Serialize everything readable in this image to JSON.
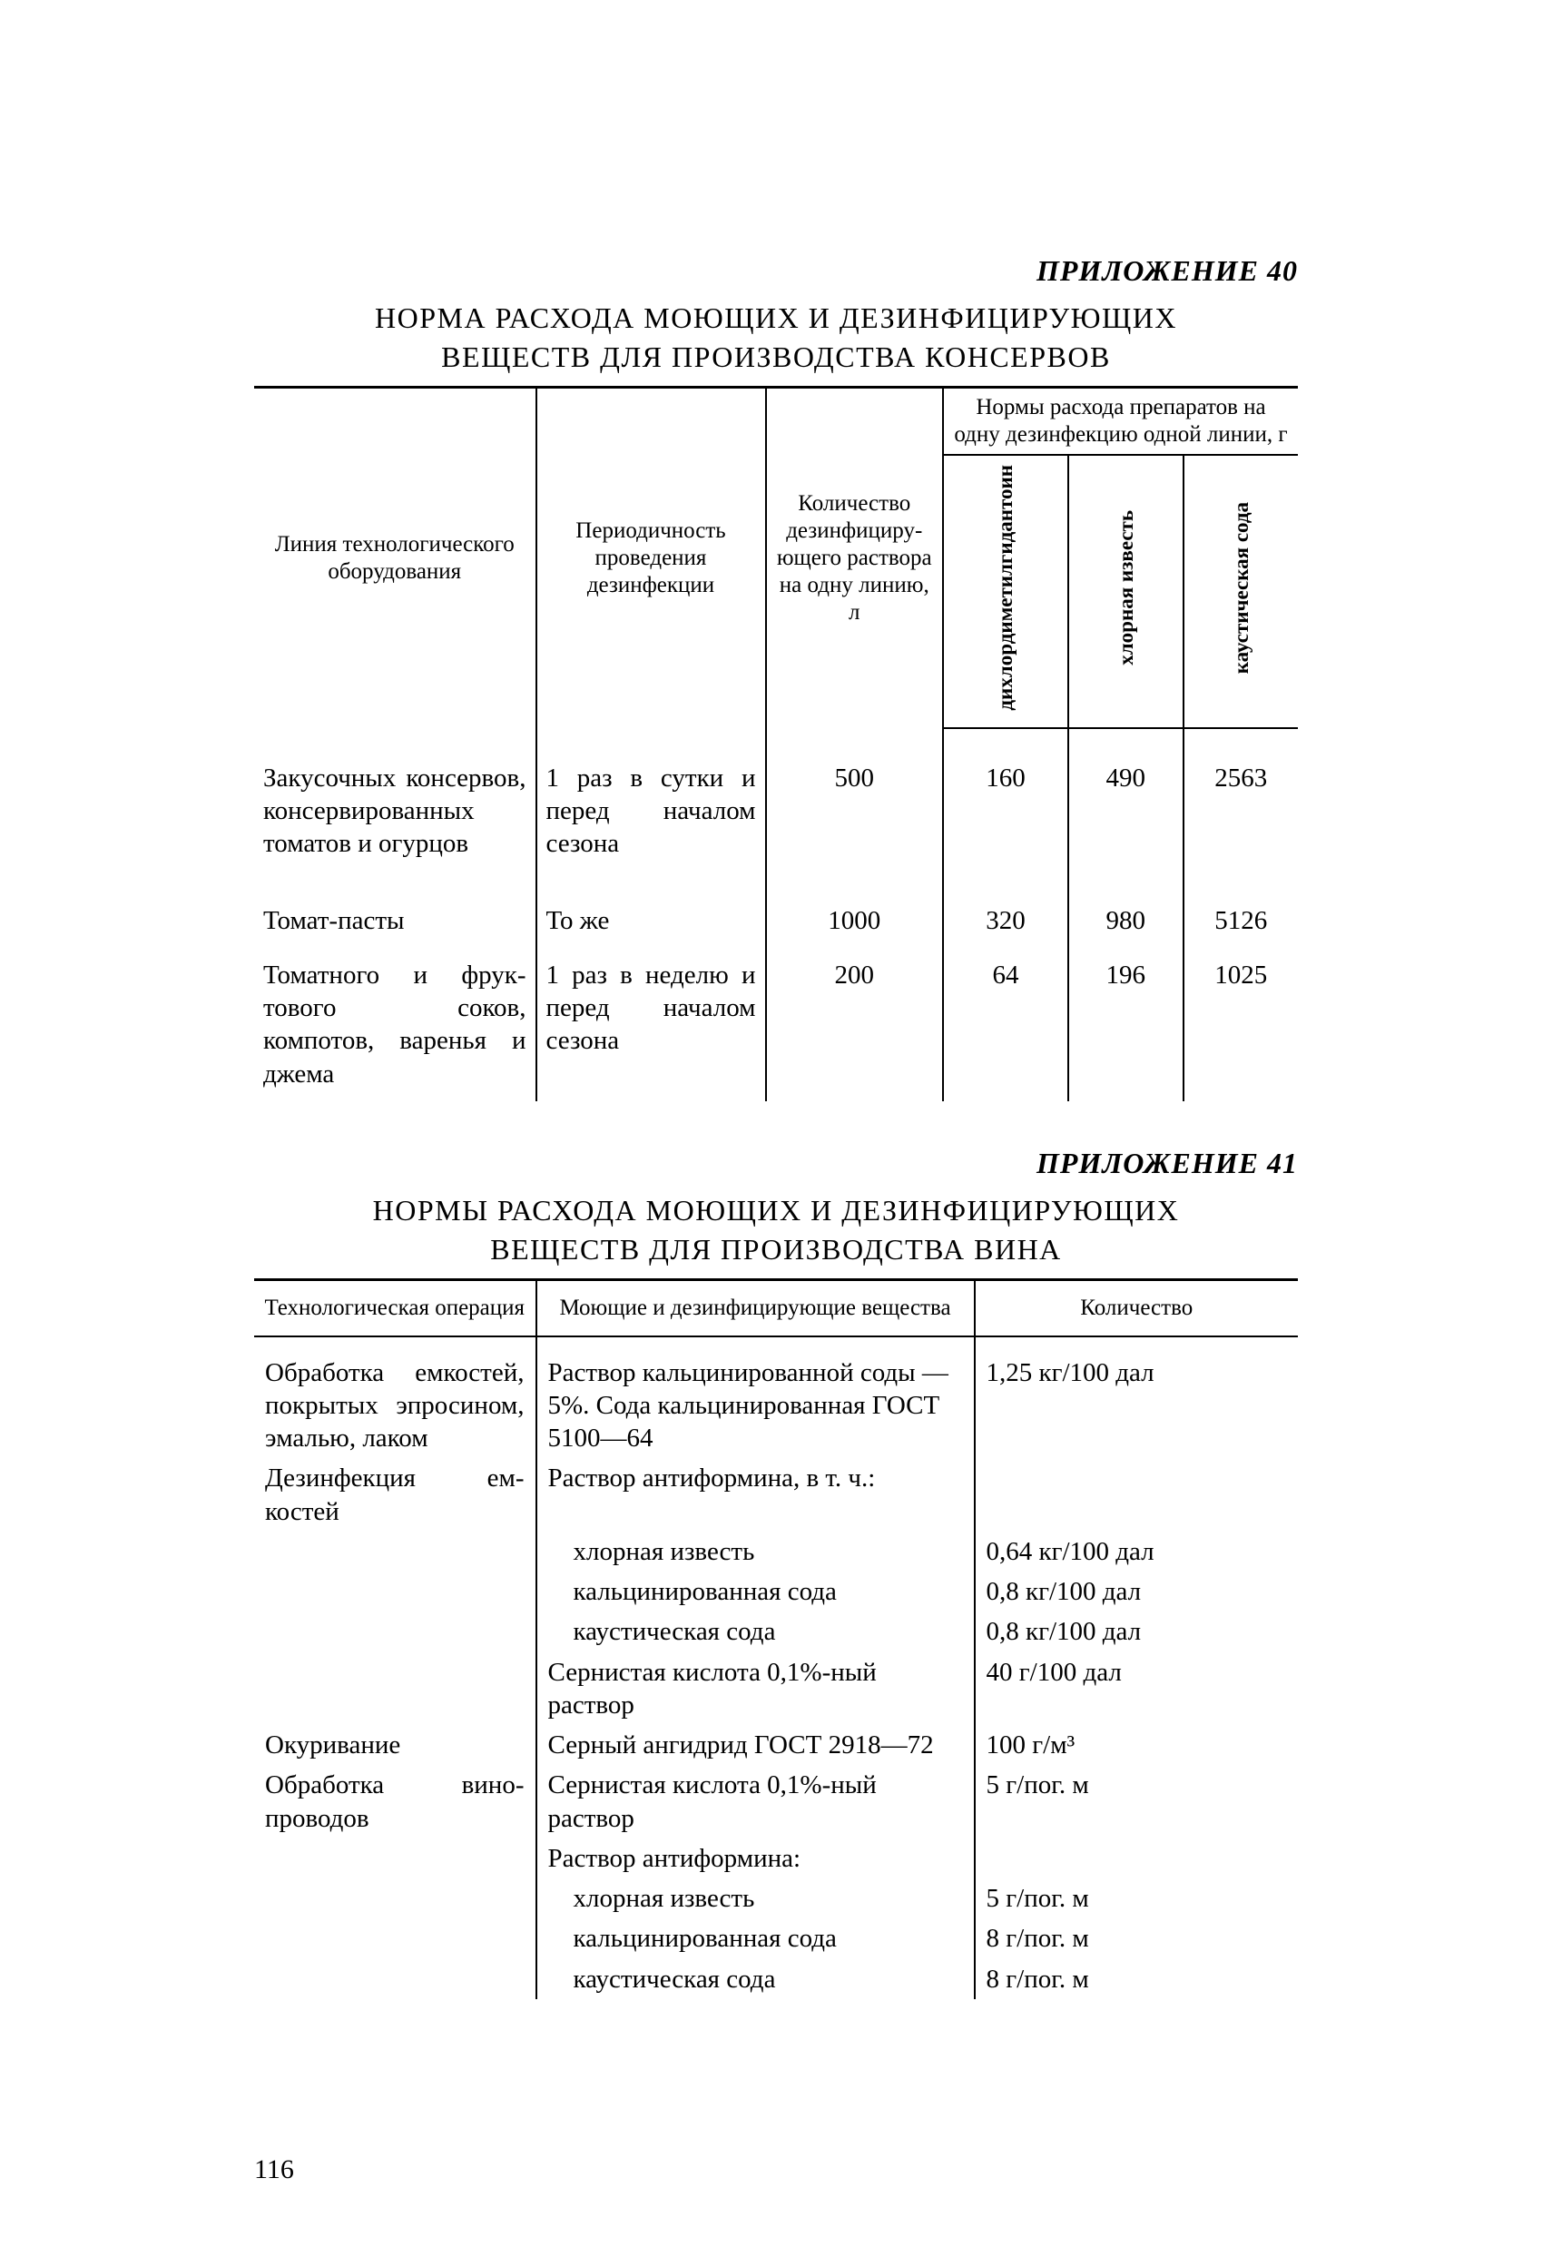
{
  "annex40": "ПРИЛОЖЕНИЕ 40",
  "title40_l1": "НОРМА РАСХОДА МОЮЩИХ И ДЕЗИНФИЦИРУЮЩИХ",
  "title40_l2": "ВЕЩЕСТВ ДЛЯ ПРОИЗВОДСТВА КОНСЕРВОВ",
  "t1": {
    "h_line": "Линия технологического оборудования",
    "h_period": "Периодичность проведения дезинфекции",
    "h_qty": "Количество дезинфициру­ющего раствора на одну линию, л",
    "h_norms": "Нормы расхода препа­ратов на одну дезин­фекцию одной линии, г",
    "h_v1": "дихлордиме­тилгидантоин",
    "h_v2": "хлорная известь",
    "h_v3": "каустическая сода",
    "r": [
      {
        "c1": "Закусочных консер­вов, консервиро­ванных томатов и огурцов",
        "c2": "1 раз в сутки и перед нача­лом сезона",
        "c3": "500",
        "c4": "160",
        "c5": "490",
        "c6": "2563"
      },
      {
        "c1": "Томат-пасты",
        "c2": "То же",
        "c3": "1000",
        "c4": "320",
        "c5": "980",
        "c6": "5126"
      },
      {
        "c1": "Томатного и фрук­тового соков, компотов, ва­ренья и джема",
        "c2": "1 раз в неде­лю и перед на­чалом сезона",
        "c3": "200",
        "c4": "64",
        "c5": "196",
        "c6": "1025"
      }
    ]
  },
  "annex41": "ПРИЛОЖЕНИЕ 41",
  "title41_l1": "НОРМЫ РАСХОДА МОЮЩИХ И ДЕЗИНФИЦИРУЮЩИХ",
  "title41_l2": "ВЕЩЕСТВ ДЛЯ ПРОИЗВОДСТВА ВИНА",
  "t2": {
    "h1": "Технологическая операция",
    "h2": "Моющие и дезинфицирующие вещества",
    "h3": "Количество",
    "rows": [
      {
        "c1": "Обработка емко­стей, покрытых эпросином, эма­лью, лаком",
        "c2": "Раствор кальцинированной соды — 5%. Сода каль­цинированная ГОСТ 5100—64",
        "c3": "1,25 кг/100 дал",
        "sub": 0
      },
      {
        "c1": "Дезинфекция ем­костей",
        "c2": "Раствор антиформина, в т. ч.:",
        "c3": "",
        "sub": 0
      },
      {
        "c1": "",
        "c2": "хлорная известь",
        "c3": "0,64 кг/100 дал",
        "sub": 1
      },
      {
        "c1": "",
        "c2": "кальцинированная сода",
        "c3": "0,8 кг/100 дал",
        "sub": 1
      },
      {
        "c1": "",
        "c2": "каустическая сода",
        "c3": "0,8 кг/100 дал",
        "sub": 1
      },
      {
        "c1": "",
        "c2": "Сернистая кислота 0,1%-ный раствор",
        "c3": "40 г/100 дал",
        "sub": 0
      },
      {
        "c1": "Окуривание",
        "c2": "Серный ангидрид ГОСТ 2918—72",
        "c3": "100 г/м³",
        "sub": 0
      },
      {
        "c1": "Обработка вино­проводов",
        "c2": "Сернистая кислота 0,1%-ный раствор",
        "c3": "5 г/пог. м",
        "sub": 0
      },
      {
        "c1": "",
        "c2": "Раствор антиформина:",
        "c3": "",
        "sub": 0
      },
      {
        "c1": "",
        "c2": "хлорная известь",
        "c3": "5 г/пог. м",
        "sub": 1
      },
      {
        "c1": "",
        "c2": "кальцинированная сода",
        "c3": "8 г/пог. м",
        "sub": 1
      },
      {
        "c1": "",
        "c2": "каустическая сода",
        "c3": "8 г/пог. м",
        "sub": 1
      }
    ]
  },
  "pageNumber": "116"
}
